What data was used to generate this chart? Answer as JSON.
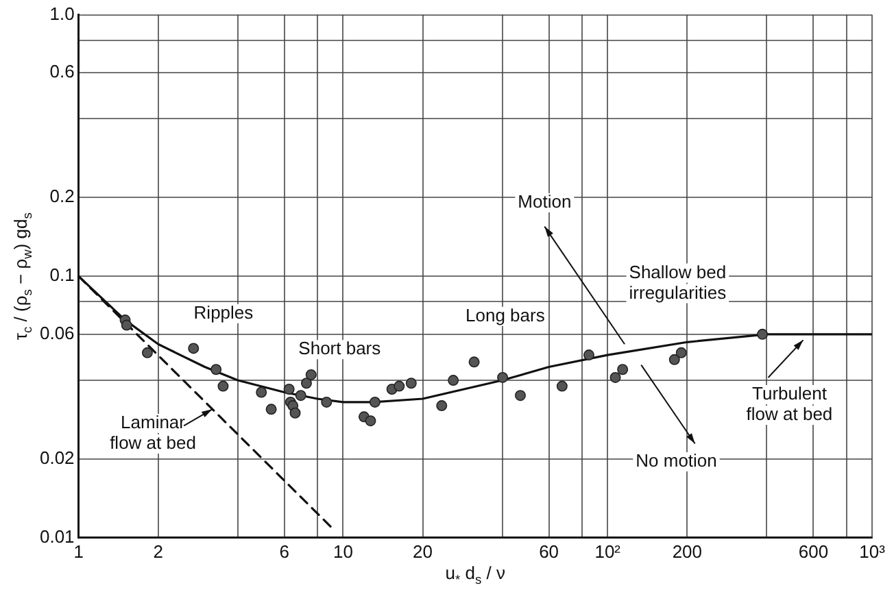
{
  "chart_data": {
    "type": "scatter",
    "xlabel": "u$_{*}$ d$_{s}$ / ν",
    "ylabel": "τ$_{c}$ / (ρ$_{s}$ − ρ$_{w}$) gd$_{s}$",
    "log": "xy",
    "grid": true,
    "legend": false,
    "xlim": [
      1,
      1000
    ],
    "ylim": [
      0.01,
      1
    ],
    "xticks": [
      1,
      2,
      {
        "value": 4,
        "label": null
      },
      6,
      {
        "value": 8,
        "label": null
      },
      10,
      20,
      {
        "value": 40,
        "label": null
      },
      60,
      {
        "value": 80,
        "label": null
      },
      {
        "value": 100,
        "label": "10²"
      },
      200,
      {
        "value": 400,
        "label": null
      },
      600,
      {
        "value": 800,
        "label": null
      },
      {
        "value": 1000,
        "label": "10³"
      }
    ],
    "yticks": [
      0.01,
      0.02,
      {
        "value": 0.04,
        "label": null
      },
      0.06,
      {
        "value": 0.08,
        "label": null
      },
      0.1,
      0.2,
      {
        "value": 0.4,
        "label": null
      },
      0.6,
      {
        "value": 0.8,
        "label": null
      },
      {
        "value": 1,
        "label": "1.0"
      }
    ],
    "annotations": [
      "Ripples",
      "Short bars",
      "Long bars",
      "Motion",
      "Shallow bed irregularities",
      "No motion",
      {
        "text": "Laminar flow at bed",
        "x": 3.2,
        "y": 0.031
      },
      {
        "text": "Turbulent flow at bed",
        "x": 549,
        "y": 0.057
      }
    ],
    "series": [
      {
        "marker": "circle",
        "color": "#555555",
        "x": [
          1.5,
          1.52,
          1.82,
          2.72,
          3.31,
          3.52,
          4.91,
          5.35,
          6.25,
          6.33,
          6.46,
          6.59,
          6.92,
          7.27,
          7.57,
          8.66,
          12.0,
          12.7,
          13.2,
          15.3,
          16.3,
          18.1,
          23.6,
          26.1,
          31.3,
          40.1,
          46.8,
          67.3,
          85,
          107,
          114,
          179,
          190,
          385
        ],
        "values": [
          0.068,
          0.065,
          0.051,
          0.053,
          0.044,
          0.038,
          0.036,
          0.031,
          0.037,
          0.033,
          0.032,
          0.03,
          0.035,
          0.039,
          0.042,
          0.033,
          0.029,
          0.028,
          0.033,
          0.037,
          0.038,
          0.039,
          0.032,
          0.04,
          0.047,
          0.041,
          0.035,
          0.038,
          0.05,
          0.041,
          0.044,
          0.048,
          0.051,
          0.06
        ]
      },
      {
        "type": "line",
        "marker": "none",
        "line_style": "solid",
        "color": "#111111",
        "x": [
          1,
          1.5,
          2,
          3,
          4,
          6,
          8,
          10,
          13,
          20,
          40,
          60,
          100,
          200,
          400,
          1000
        ],
        "values": [
          0.1,
          0.068,
          0.055,
          0.045,
          0.04,
          0.036,
          0.034,
          0.033,
          0.033,
          0.034,
          0.04,
          0.045,
          0.05,
          0.056,
          0.06,
          0.06
        ]
      },
      {
        "type": "line",
        "marker": "none",
        "line_style": "dashed",
        "color": "#111111",
        "x": [
          1,
          9
        ],
        "values": [
          0.1,
          0.011
        ]
      }
    ]
  }
}
